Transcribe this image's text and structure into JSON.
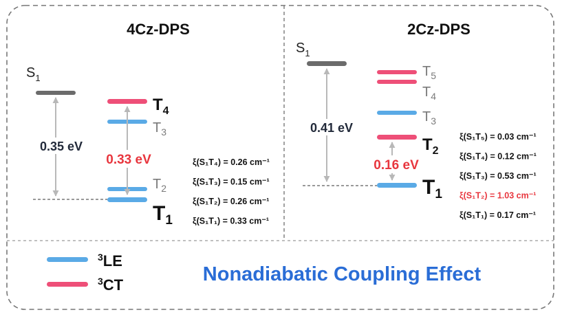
{
  "colors": {
    "le": "#5aaae6",
    "ct": "#ee4f78",
    "s1": "#6b6b6b",
    "arrow": "#b8b8b8",
    "gap_dark": "#222a3a",
    "gap_red": "#e8363e",
    "label_gray": "#7a7a7a",
    "title_blue": "#2a6dd6",
    "highlight_red": "#e8363e",
    "frame": "#777777"
  },
  "left": {
    "title": "4Cz-DPS",
    "gap_s1": "0.35 eV",
    "gap_ct": "0.33 eV",
    "levels": {
      "s1": {
        "base": "S",
        "sub": "1"
      },
      "t4": {
        "base": "T",
        "sub": "4"
      },
      "t3": {
        "base": "T",
        "sub": "3"
      },
      "t2": {
        "base": "T",
        "sub": "2"
      },
      "t1": {
        "base": "T",
        "sub": "1"
      }
    },
    "socme": [
      {
        "pair": "S₁T₄",
        "value": "0.26 cm⁻¹"
      },
      {
        "pair": "S₁T₃",
        "value": "0.15 cm⁻¹"
      },
      {
        "pair": "S₁T₂",
        "value": "0.26 cm⁻¹"
      },
      {
        "pair": "S₁T₁",
        "value": "0.33 cm⁻¹"
      }
    ]
  },
  "right": {
    "title": "2Cz-DPS",
    "gap_s1": "0.41 eV",
    "gap_ct": "0.16 eV",
    "levels": {
      "s1": {
        "base": "S",
        "sub": "1"
      },
      "t5": {
        "base": "T",
        "sub": "5"
      },
      "t4": {
        "base": "T",
        "sub": "4"
      },
      "t3": {
        "base": "T",
        "sub": "3"
      },
      "t2": {
        "base": "T",
        "sub": "2"
      },
      "t1": {
        "base": "T",
        "sub": "1"
      }
    },
    "socme": [
      {
        "pair": "S₁T₅",
        "value": "0.03 cm⁻¹",
        "highlight": false
      },
      {
        "pair": "S₁T₄",
        "value": "0.12 cm⁻¹",
        "highlight": false
      },
      {
        "pair": "S₁T₃",
        "value": "0.53 cm⁻¹",
        "highlight": false
      },
      {
        "pair": "S₁T₂",
        "value": "1.03 cm⁻¹",
        "highlight": true
      },
      {
        "pair": "S₁T₁",
        "value": "0.17 cm⁻¹",
        "highlight": false
      }
    ]
  },
  "socme_symbol": "ξ",
  "legend": {
    "le": {
      "sup": "3",
      "label": "LE"
    },
    "ct": {
      "sup": "3",
      "label": "CT"
    }
  },
  "bottom_title": "Nonadiabatic Coupling Effect"
}
